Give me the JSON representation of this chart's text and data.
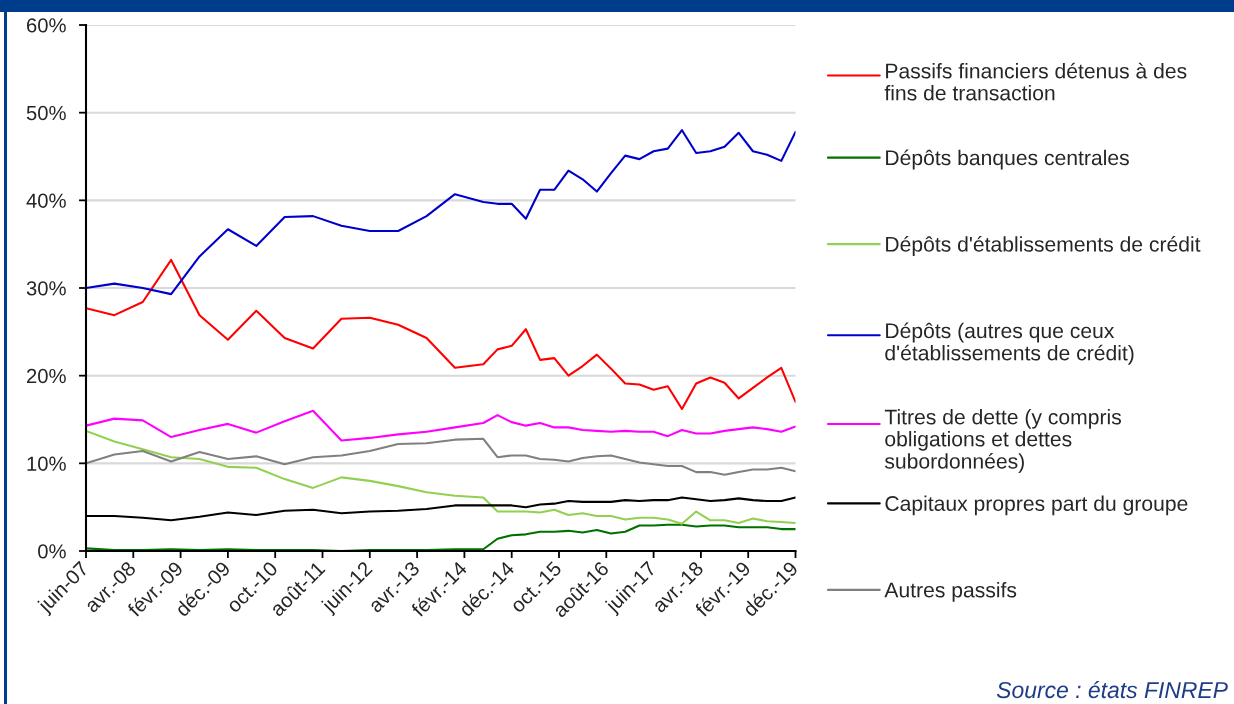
{
  "chart_data": {
    "type": "line",
    "x": [
      "2007-06",
      "2007-12",
      "2008-06",
      "2008-12",
      "2009-06",
      "2009-12",
      "2010-06",
      "2010-12",
      "2011-06",
      "2011-12",
      "2012-06",
      "2012-12",
      "2013-06",
      "2013-12",
      "2014-06",
      "2014-09",
      "2014-12",
      "2015-03",
      "2015-06",
      "2015-09",
      "2015-12",
      "2016-03",
      "2016-06",
      "2016-09",
      "2016-12",
      "2017-03",
      "2017-06",
      "2017-09",
      "2017-12",
      "2018-03",
      "2018-06",
      "2018-09",
      "2018-12",
      "2019-03",
      "2019-06",
      "2019-09",
      "2019-12"
    ],
    "series": [
      {
        "name": "Passifs financiers détenus à des fins de transaction",
        "color": "#ff0000",
        "values": [
          27.7,
          26.9,
          28.4,
          33.2,
          26.9,
          24.1,
          27.4,
          24.3,
          23.1,
          26.5,
          26.6,
          25.8,
          24.3,
          20.9,
          21.3,
          23.0,
          23.4,
          25.3,
          21.8,
          22.0,
          20.0,
          21.1,
          22.4,
          20.8,
          19.1,
          19.0,
          18.4,
          18.8,
          16.2,
          19.1,
          19.8,
          19.2,
          17.4,
          18.6,
          19.8,
          20.9,
          17.0
        ]
      },
      {
        "name": "Dépôts banques centrales",
        "color": "#007000",
        "values": [
          0.3,
          0.1,
          0.1,
          0.2,
          0.1,
          0.2,
          0.1,
          0.1,
          0.1,
          0.0,
          0.1,
          0.1,
          0.1,
          0.2,
          0.2,
          1.4,
          1.8,
          1.9,
          2.2,
          2.2,
          2.3,
          2.1,
          2.4,
          2.0,
          2.2,
          2.9,
          2.9,
          3.0,
          3.0,
          2.8,
          2.9,
          2.9,
          2.7,
          2.7,
          2.7,
          2.5,
          2.5
        ]
      },
      {
        "name": "Dépôts d'établissements de crédit",
        "color": "#92d050",
        "values": [
          13.7,
          12.5,
          11.6,
          10.7,
          10.5,
          9.6,
          9.5,
          8.2,
          7.2,
          8.4,
          8.0,
          7.4,
          6.7,
          6.3,
          6.1,
          4.5,
          4.5,
          4.5,
          4.4,
          4.7,
          4.1,
          4.3,
          4.0,
          4.0,
          3.6,
          3.8,
          3.8,
          3.6,
          3.1,
          4.5,
          3.5,
          3.5,
          3.2,
          3.7,
          3.4,
          3.3,
          3.2
        ]
      },
      {
        "name": "Dépôts (autres que ceux d'établissements de crédit)",
        "color": "#0000cc",
        "values": [
          30.0,
          30.5,
          30.0,
          29.3,
          33.6,
          36.7,
          34.8,
          38.1,
          38.2,
          37.1,
          36.5,
          36.5,
          38.2,
          40.7,
          39.8,
          39.6,
          39.6,
          37.9,
          41.2,
          41.2,
          43.4,
          42.4,
          41.0,
          43.1,
          45.1,
          44.7,
          45.6,
          45.9,
          48.0,
          45.4,
          45.6,
          46.1,
          47.7,
          45.6,
          45.2,
          44.5,
          47.8
        ]
      },
      {
        "name": "Titres de dette (y compris obligations et dettes subordonnées)",
        "color": "#ff00ff",
        "values": [
          14.3,
          15.1,
          14.9,
          13.0,
          13.8,
          14.5,
          13.5,
          14.8,
          16.0,
          12.6,
          12.9,
          13.3,
          13.6,
          14.1,
          14.6,
          15.5,
          14.7,
          14.3,
          14.6,
          14.1,
          14.1,
          13.8,
          13.7,
          13.6,
          13.7,
          13.6,
          13.6,
          13.1,
          13.8,
          13.4,
          13.4,
          13.7,
          13.9,
          14.1,
          13.9,
          13.6,
          14.2
        ]
      },
      {
        "name": "Capitaux propres part du groupe",
        "color": "#000000",
        "values": [
          4.0,
          4.0,
          3.8,
          3.5,
          3.9,
          4.4,
          4.1,
          4.6,
          4.7,
          4.3,
          4.5,
          4.6,
          4.8,
          5.2,
          5.2,
          5.2,
          5.2,
          5.0,
          5.3,
          5.4,
          5.7,
          5.6,
          5.6,
          5.6,
          5.8,
          5.7,
          5.8,
          5.8,
          6.1,
          5.9,
          5.7,
          5.8,
          6.0,
          5.8,
          5.7,
          5.7,
          6.1
        ]
      },
      {
        "name": "Autres passifs",
        "color": "#808080",
        "values": [
          10.0,
          11.0,
          11.4,
          10.2,
          11.3,
          10.5,
          10.8,
          9.9,
          10.7,
          10.9,
          11.4,
          12.2,
          12.3,
          12.7,
          12.8,
          10.7,
          10.9,
          10.9,
          10.5,
          10.4,
          10.2,
          10.6,
          10.8,
          10.9,
          10.5,
          10.1,
          9.9,
          9.7,
          9.7,
          9.0,
          9.0,
          8.7,
          9.0,
          9.3,
          9.3,
          9.5,
          9.1
        ]
      }
    ],
    "xlim": [
      "2007-06",
      "2019-12"
    ],
    "xticks": [
      {
        "value": "2007-06",
        "label": "juin-07"
      },
      {
        "value": "2008-04",
        "label": "avr.-08"
      },
      {
        "value": "2009-02",
        "label": "févr.-09"
      },
      {
        "value": "2009-12",
        "label": "déc.-09"
      },
      {
        "value": "2010-10",
        "label": "oct.-10"
      },
      {
        "value": "2011-08",
        "label": "août-11"
      },
      {
        "value": "2012-06",
        "label": "juin-12"
      },
      {
        "value": "2013-04",
        "label": "avr.-13"
      },
      {
        "value": "2014-02",
        "label": "févr.-14"
      },
      {
        "value": "2014-12",
        "label": "déc.-14"
      },
      {
        "value": "2015-10",
        "label": "oct.-15"
      },
      {
        "value": "2016-08",
        "label": "août-16"
      },
      {
        "value": "2017-06",
        "label": "juin-17"
      },
      {
        "value": "2018-04",
        "label": "avr.-18"
      },
      {
        "value": "2019-02",
        "label": "févr.-19"
      },
      {
        "value": "2019-12",
        "label": "déc.-19"
      }
    ],
    "ylim": [
      0,
      60
    ],
    "yticks": [
      {
        "value": 0,
        "label": "0%"
      },
      {
        "value": 10,
        "label": "10%"
      },
      {
        "value": 20,
        "label": "20%"
      },
      {
        "value": 30,
        "label": "30%"
      },
      {
        "value": 40,
        "label": "40%"
      },
      {
        "value": 50,
        "label": "50%"
      },
      {
        "value": 60,
        "label": "60%"
      }
    ],
    "grid": "y",
    "legend": "right",
    "line_style": "solid",
    "annotations": [
      "Source : états FINREP"
    ]
  }
}
